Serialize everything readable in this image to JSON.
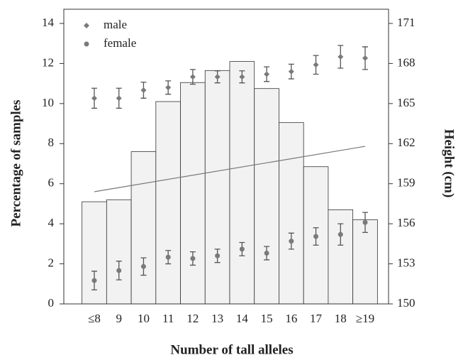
{
  "chart_data": {
    "type": "bar",
    "xlabel": "Number of  tall alleles",
    "ylabel": "Percentage of samples",
    "y2label": "Height (cm)",
    "categories": [
      "≤8",
      "9",
      "10",
      "11",
      "12",
      "13",
      "14",
      "15",
      "16",
      "17",
      "18",
      "≥19"
    ],
    "ylim": [
      0,
      14
    ],
    "yticks": [
      0,
      2,
      4,
      6,
      8,
      10,
      12,
      14
    ],
    "y2lim": [
      150,
      171
    ],
    "y2ticks": [
      150,
      153,
      156,
      159,
      162,
      165,
      168,
      171
    ],
    "legend": "upper left",
    "series": [
      {
        "type": "bar",
        "color": "#f2f2f2",
        "values": [
          5.1,
          5.2,
          7.6,
          10.1,
          11.05,
          11.65,
          12.1,
          10.75,
          9.05,
          6.85,
          4.7,
          4.2
        ]
      },
      {
        "type": "scatter",
        "name": "male",
        "marker": "diamond",
        "axis": "y2",
        "color": "#7a7a7a",
        "values": [
          165.4,
          165.4,
          166.0,
          166.2,
          167.0,
          167.0,
          167.0,
          167.2,
          167.4,
          167.9,
          168.5,
          168.4
        ],
        "errors": [
          0.75,
          0.75,
          0.6,
          0.5,
          0.55,
          0.45,
          0.45,
          0.55,
          0.55,
          0.7,
          0.85,
          0.85
        ]
      },
      {
        "type": "scatter",
        "name": "female",
        "marker": "circle",
        "axis": "y2",
        "color": "#7a7a7a",
        "values": [
          151.75,
          152.5,
          152.8,
          153.5,
          153.4,
          153.6,
          154.1,
          153.8,
          154.7,
          155.05,
          155.2,
          156.1
        ],
        "errors": [
          0.7,
          0.7,
          0.65,
          0.5,
          0.5,
          0.5,
          0.5,
          0.5,
          0.6,
          0.65,
          0.8,
          0.75
        ]
      }
    ],
    "trend_line": {
      "axis": "y2",
      "color": "#777777",
      "values": [
        158.4,
        161.8
      ]
    }
  }
}
